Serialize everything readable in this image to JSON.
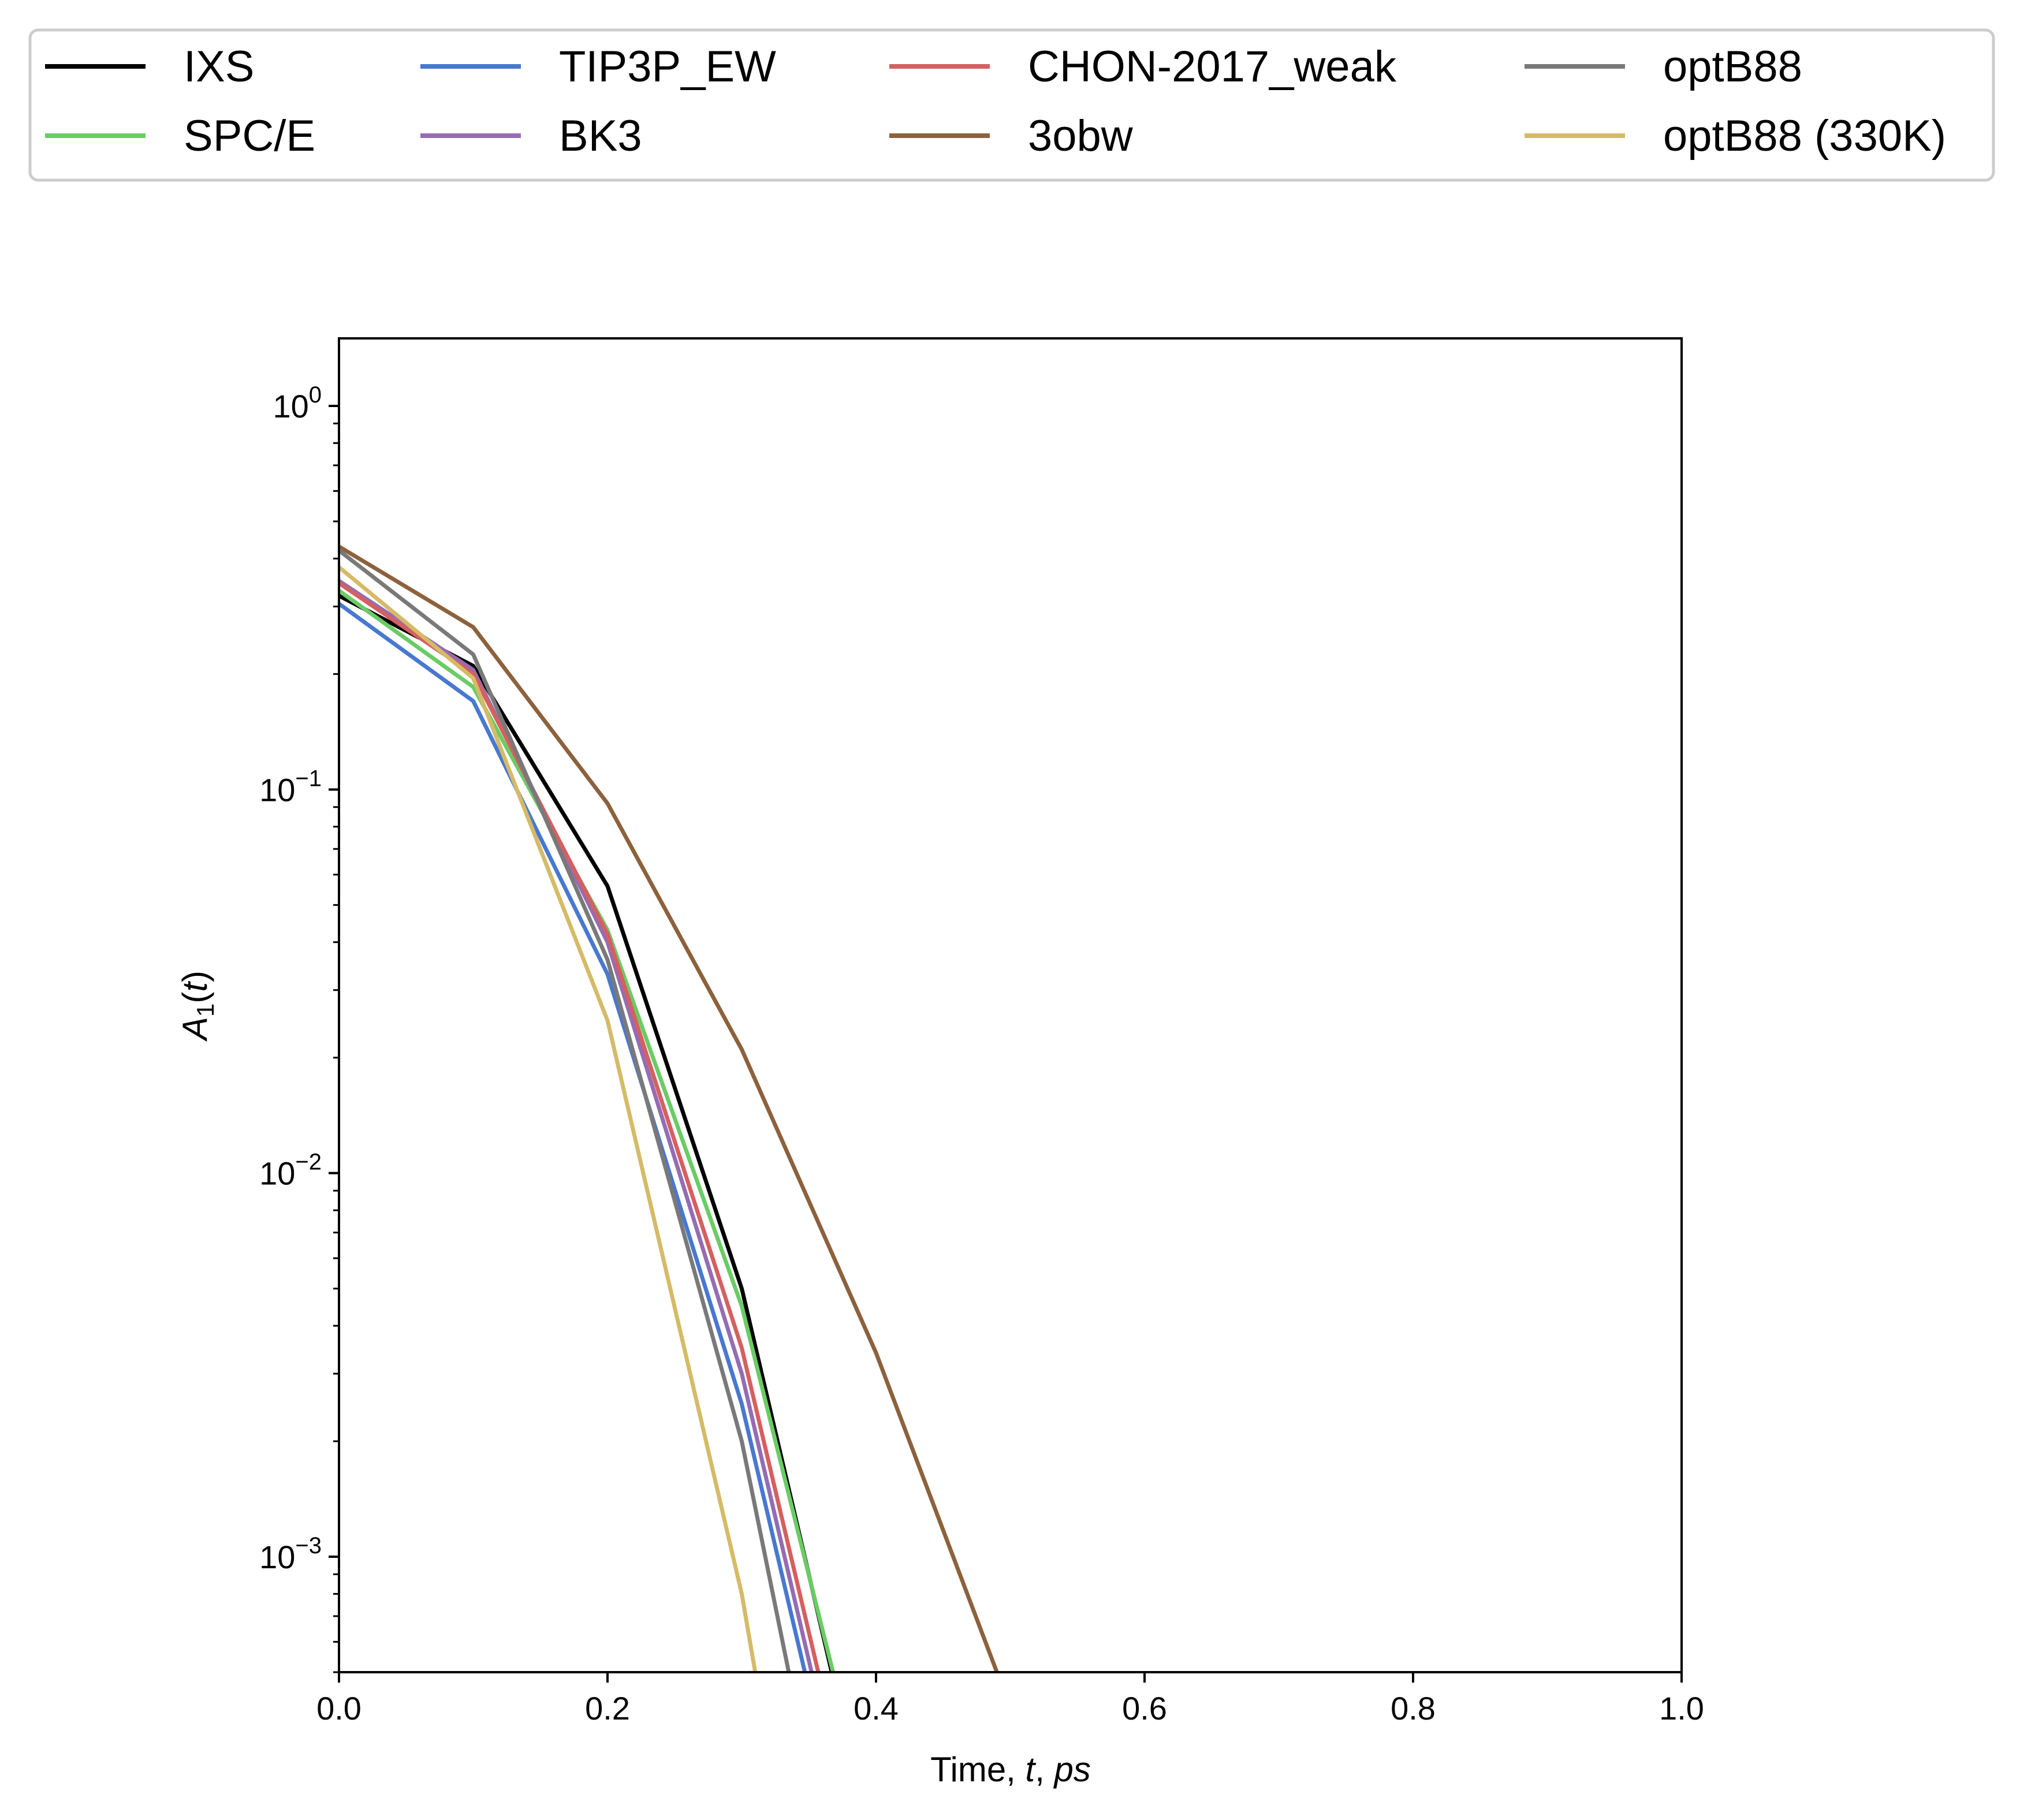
{
  "chart_data": {
    "type": "line",
    "xlabel": {
      "pre": "Time, ",
      "var": "t",
      "sep": ", ",
      "unit": "ps"
    },
    "ylabel": {
      "main": "A",
      "sub": "1",
      "open": "(",
      "var": "t",
      "close": ")"
    },
    "xlim": [
      0.0,
      1.0
    ],
    "ylim": [
      0.0005,
      1.5
    ],
    "yscale": "log",
    "grid": false,
    "legend_position": "top, above plot, 4 columns",
    "x_ticks": [
      "0.0",
      "0.2",
      "0.4",
      "0.6",
      "0.8",
      "1.0"
    ],
    "y_ticks": [
      {
        "value": 1,
        "base": "10",
        "exp": "0"
      },
      {
        "value": 0.1,
        "base": "10",
        "exp": "−1"
      },
      {
        "value": 0.01,
        "base": "10",
        "exp": "−2"
      },
      {
        "value": 0.001,
        "base": "10",
        "exp": "−3"
      }
    ],
    "series": [
      {
        "name": "IXS",
        "color": "#000000",
        "x": [
          0.0,
          0.1,
          0.2,
          0.3,
          0.367
        ],
        "y": [
          0.32,
          0.21,
          0.056,
          0.005,
          0.0005
        ]
      },
      {
        "name": "SPC/E",
        "color": "#6acc64",
        "x": [
          0.0,
          0.1,
          0.2,
          0.3,
          0.368
        ],
        "y": [
          0.33,
          0.185,
          0.043,
          0.0045,
          0.0005
        ]
      },
      {
        "name": "TIP3P_EW",
        "color": "#4878d0",
        "x": [
          0.0,
          0.1,
          0.2,
          0.3,
          0.347
        ],
        "y": [
          0.305,
          0.17,
          0.033,
          0.0025,
          0.0005
        ]
      },
      {
        "name": "BK3",
        "color": "#956cb4",
        "x": [
          0.0,
          0.1,
          0.2,
          0.3,
          0.352
        ],
        "y": [
          0.35,
          0.205,
          0.04,
          0.003,
          0.0005
        ]
      },
      {
        "name": "CHON-2017_weak",
        "color": "#d65f5f",
        "x": [
          0.0,
          0.1,
          0.2,
          0.3,
          0.357
        ],
        "y": [
          0.345,
          0.2,
          0.042,
          0.0035,
          0.0005
        ]
      },
      {
        "name": "3obw",
        "color": "#8c613c",
        "x": [
          0.0,
          0.1,
          0.2,
          0.3,
          0.4,
          0.49
        ],
        "y": [
          0.43,
          0.265,
          0.092,
          0.021,
          0.0034,
          0.0005
        ]
      },
      {
        "name": "optB88",
        "color": "#797979",
        "x": [
          0.0,
          0.1,
          0.2,
          0.3,
          0.335
        ],
        "y": [
          0.42,
          0.225,
          0.036,
          0.002,
          0.0005
        ]
      },
      {
        "name": "optB88 (330K)",
        "color": "#d5bb67",
        "x": [
          0.0,
          0.1,
          0.2,
          0.3,
          0.31
        ],
        "y": [
          0.38,
          0.195,
          0.025,
          0.0008,
          0.0005
        ]
      }
    ]
  }
}
